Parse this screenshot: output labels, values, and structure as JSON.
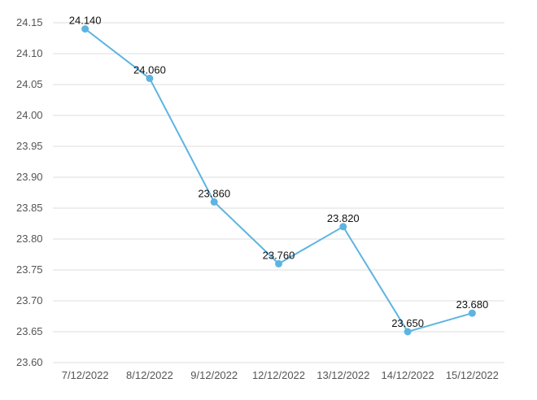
{
  "chart_data": {
    "type": "line",
    "title": "",
    "xlabel": "",
    "ylabel": "",
    "categories": [
      "7/12/2022",
      "8/12/2022",
      "9/12/2022",
      "12/12/2022",
      "13/12/2022",
      "14/12/2022",
      "15/12/2022"
    ],
    "series": [
      {
        "values": [
          24.14,
          24.06,
          23.86,
          23.76,
          23.82,
          23.65,
          23.68
        ],
        "data_labels": [
          "24.140",
          "24.060",
          "23.860",
          "23.760",
          "23.820",
          "23.650",
          "23.680"
        ],
        "color": "#5db4e0"
      }
    ],
    "ylim": [
      23.6,
      24.15
    ],
    "yticks": [
      "23.60",
      "23.65",
      "23.70",
      "23.75",
      "23.80",
      "23.85",
      "23.90",
      "23.95",
      "24.00",
      "24.05",
      "24.10",
      "24.15"
    ],
    "grid": true,
    "legend": "none"
  }
}
